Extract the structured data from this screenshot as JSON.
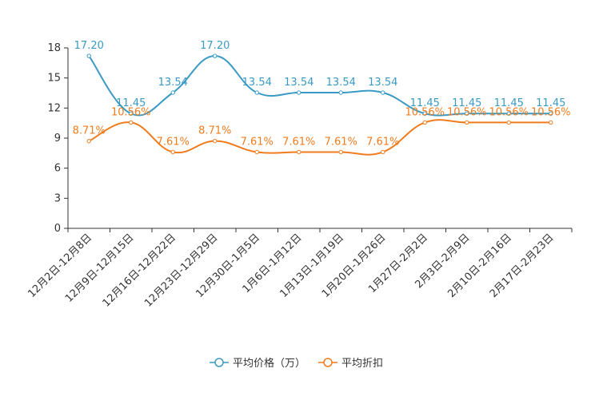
{
  "chart_data": {
    "type": "line",
    "categories": [
      "12月2日-12月8日",
      "12月9日-12月15日",
      "12月16日-12月22日",
      "12月23日-12月29日",
      "12月30日-1月5日",
      "1月6日-1月12日",
      "1月13日-1月19日",
      "1月20日-1月26日",
      "1月27日-2月2日",
      "2月3日-2月9日",
      "2月10日-2月16日",
      "2月17日-2月23日"
    ],
    "ylim": [
      0,
      18
    ],
    "yticks": [
      0,
      3,
      6,
      9,
      12,
      15,
      18
    ],
    "series": [
      {
        "name": "平均价格（万）",
        "color": "#3a9ac4",
        "values": [
          17.2,
          11.45,
          13.54,
          17.2,
          13.54,
          13.54,
          13.54,
          13.54,
          11.45,
          11.45,
          11.45,
          11.45
        ],
        "labels": [
          "17.20",
          "11.45",
          "13.54",
          "17.20",
          "13.54",
          "13.54",
          "13.54",
          "13.54",
          "11.45",
          "11.45",
          "11.45",
          "11.45"
        ]
      },
      {
        "name": "平均折扣",
        "color": "#f07c1e",
        "values": [
          8.71,
          10.56,
          7.61,
          8.71,
          7.61,
          7.61,
          7.61,
          7.61,
          10.56,
          10.56,
          10.56,
          10.56
        ],
        "labels": [
          "8.71%",
          "10.56%",
          "7.61%",
          "8.71%",
          "7.61%",
          "7.61%",
          "7.61%",
          "7.61%",
          "10.56%",
          "10.56%",
          "10.56%",
          "10.56%"
        ]
      }
    ],
    "legend_position": "bottom-center"
  }
}
